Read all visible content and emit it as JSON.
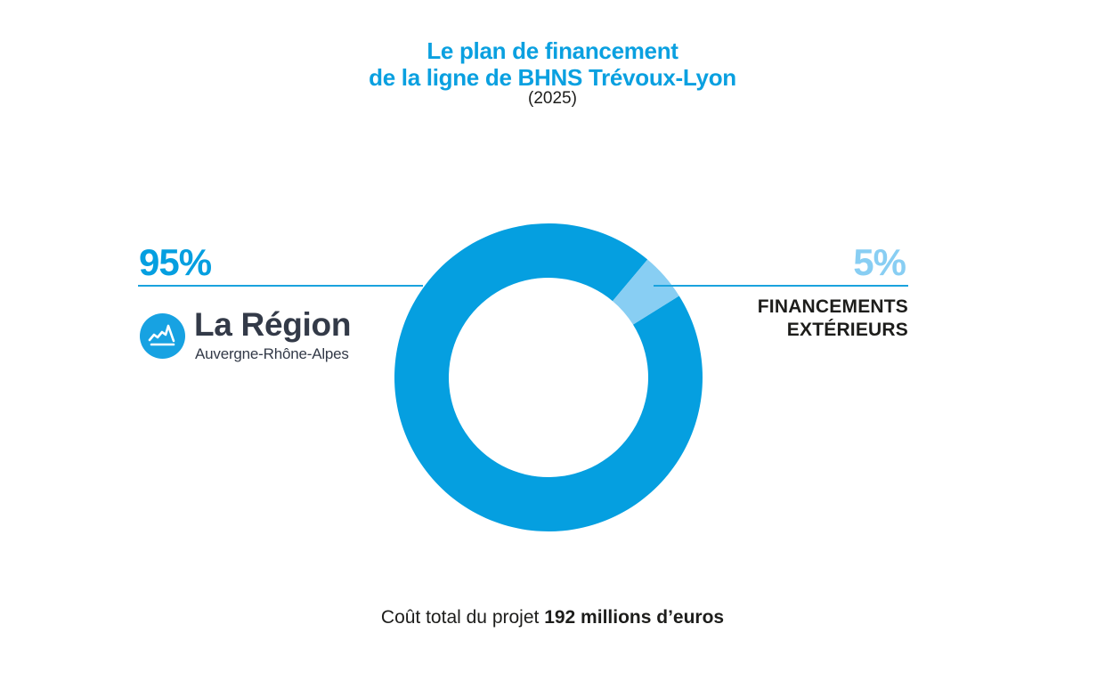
{
  "header": {
    "title_line1": "Le plan de financement",
    "title_line2": "de la ligne de BHNS Trévoux-Lyon",
    "subtitle": "(2025)"
  },
  "left": {
    "percent": "95%",
    "logo_name": "La Région",
    "logo_sub": "Auvergne-Rhône-Alpes"
  },
  "right": {
    "percent": "5%",
    "label_line1": "FINANCEMENTS",
    "label_line2": "EXTÉRIEURS"
  },
  "footer": {
    "prefix": "Coût total du projet ",
    "amount": "192 millions d’euros"
  },
  "colors": {
    "primary": "#059fe0",
    "secondary": "#88cef3",
    "text": "#1d1d1b",
    "logo_text": "#333a48"
  },
  "chart_data": {
    "type": "pie",
    "variant": "donut",
    "title": "Le plan de financement de la ligne de BHNS Trévoux-Lyon (2025)",
    "categories": [
      "La Région Auvergne-Rhône-Alpes",
      "Financements extérieurs"
    ],
    "values": [
      95,
      5
    ],
    "unit": "%",
    "colors": [
      "#059fe0",
      "#88cef3"
    ],
    "total_label": "Coût total du projet 192 millions d’euros",
    "total_value": 192,
    "total_unit": "millions d’euros"
  }
}
